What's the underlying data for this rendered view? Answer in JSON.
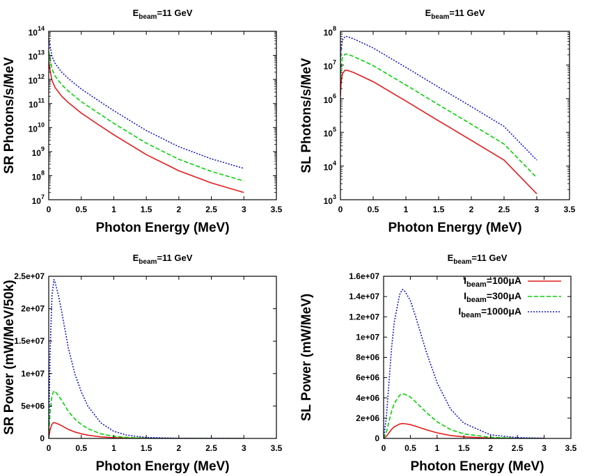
{
  "colors": {
    "red": "#e41a1c",
    "green": "#00d400",
    "blue": "#1414d2"
  },
  "legend": {
    "title_sub": "beam",
    "entries": [
      {
        "prefix": "I",
        "sub": "beam",
        "value": "=100μA",
        "series": 0
      },
      {
        "prefix": "I",
        "sub": "beam",
        "value": "=300μA",
        "series": 1
      },
      {
        "prefix": "I",
        "sub": "beam",
        "value": "=1000μA",
        "series": 2
      }
    ]
  },
  "chart_data": [
    {
      "id": "sr-photons",
      "type": "line",
      "title_main": "E",
      "title_sub": "beam",
      "title_rest": "=11 GeV",
      "xlabel": "Photon Energy (MeV)",
      "ylabel": "SR Photons/s/MeV",
      "xscale": "linear",
      "yscale": "log",
      "xlim": [
        0,
        3.5
      ],
      "ylim": [
        10000000,
        100000000000000
      ],
      "xticks": [
        "0",
        "0.5",
        "1",
        "1.5",
        "2",
        "2.5",
        "3",
        "3.5"
      ],
      "yticks": [
        {
          "base": "10",
          "exp": "7"
        },
        {
          "base": "10",
          "exp": "8"
        },
        {
          "base": "10",
          "exp": "9"
        },
        {
          "base": "10",
          "exp": "10"
        },
        {
          "base": "10",
          "exp": "11"
        },
        {
          "base": "10",
          "exp": "12"
        },
        {
          "base": "10",
          "exp": "13"
        },
        {
          "base": "10",
          "exp": "14"
        }
      ],
      "series": [
        {
          "name": "I_beam=100μA",
          "x": [
            0.0,
            0.05,
            0.1,
            0.2,
            0.3,
            0.5,
            0.75,
            1.0,
            1.5,
            2.0,
            2.5,
            3.0
          ],
          "y": [
            5000000000000.0,
            900000000000.0,
            450000000000.0,
            200000000000.0,
            110000000000.0,
            40000000000.0,
            14000000000.0,
            5000000000.0,
            750000000.0,
            160000000.0,
            50000000.0,
            20000000.0
          ]
        },
        {
          "name": "I_beam=300μA",
          "x": [
            0.0,
            0.05,
            0.1,
            0.2,
            0.3,
            0.5,
            0.75,
            1.0,
            1.5,
            2.0,
            2.5,
            3.0
          ],
          "y": [
            15000000000000.0,
            2700000000000.0,
            1350000000000.0,
            600000000000.0,
            330000000000.0,
            120000000000.0,
            42000000000.0,
            15000000000.0,
            2250000000.0,
            480000000.0,
            150000000.0,
            60000000.0
          ]
        },
        {
          "name": "I_beam=1000μA",
          "x": [
            0.0,
            0.05,
            0.1,
            0.2,
            0.3,
            0.5,
            0.75,
            1.0,
            1.5,
            2.0,
            2.5,
            3.0
          ],
          "y": [
            50000000000000.0,
            9000000000000.0,
            4500000000000.0,
            2000000000000.0,
            1100000000000.0,
            400000000000.0,
            140000000000.0,
            50000000000.0,
            7500000000.0,
            1600000000.0,
            500000000.0,
            200000000.0
          ]
        }
      ]
    },
    {
      "id": "sl-photons",
      "type": "line",
      "title_main": "E",
      "title_sub": "beam",
      "title_rest": "=11 GeV",
      "xlabel": "Photon Energy (MeV)",
      "ylabel": "SL Photons/s/MeV",
      "xscale": "linear",
      "yscale": "log",
      "xlim": [
        0,
        3.5
      ],
      "ylim": [
        1000,
        100000000
      ],
      "xticks": [
        "0",
        "0.5",
        "1",
        "1.5",
        "2",
        "2.5",
        "3",
        "3.5"
      ],
      "yticks": [
        {
          "base": "10",
          "exp": "3"
        },
        {
          "base": "10",
          "exp": "4"
        },
        {
          "base": "10",
          "exp": "5"
        },
        {
          "base": "10",
          "exp": "6"
        },
        {
          "base": "10",
          "exp": "7"
        },
        {
          "base": "10",
          "exp": "8"
        }
      ],
      "series": [
        {
          "name": "I_beam=100μA",
          "x": [
            0.0,
            0.01,
            0.03,
            0.07,
            0.1,
            0.2,
            0.5,
            1.0,
            1.5,
            2.0,
            2.5,
            3.0
          ],
          "y": [
            1200000.0,
            3000000.0,
            5500000.0,
            7000000.0,
            7000000.0,
            6000000.0,
            3200000.0,
            850000.0,
            220000.0,
            58000.0,
            15000.0,
            1500.0
          ]
        },
        {
          "name": "I_beam=300μA",
          "x": [
            0.0,
            0.01,
            0.03,
            0.07,
            0.1,
            0.2,
            0.5,
            1.0,
            1.5,
            2.0,
            2.5,
            3.0
          ],
          "y": [
            3600000.0,
            9000000.0,
            16500000.0,
            21000000.0,
            21000000.0,
            18000000.0,
            9600000.0,
            2550000.0,
            660000.0,
            174000.0,
            45000.0,
            4500.0
          ]
        },
        {
          "name": "I_beam=1000μA",
          "x": [
            0.0,
            0.01,
            0.03,
            0.07,
            0.1,
            0.2,
            0.5,
            1.0,
            1.5,
            2.0,
            2.5,
            3.0
          ],
          "y": [
            12000000.0,
            30000000.0,
            55000000.0,
            70000000.0,
            70000000.0,
            60000000.0,
            32000000.0,
            8500000.0,
            2200000.0,
            580000.0,
            150000.0,
            15000.0
          ]
        }
      ]
    },
    {
      "id": "sr-power",
      "type": "line",
      "title_main": "E",
      "title_sub": "beam",
      "title_rest": "=11 GeV",
      "xlabel": "Photon Energy (MeV)",
      "ylabel": "SR Power (mW/MeV/50k)",
      "xscale": "linear",
      "yscale": "linear",
      "xlim": [
        0,
        3.5
      ],
      "ylim": [
        0,
        25000000
      ],
      "xticks": [
        "0",
        "0.5",
        "1",
        "1.5",
        "2",
        "2.5",
        "3",
        "3.5"
      ],
      "yticks": [
        "0",
        "5e+06",
        "1e+07",
        "1.5e+07",
        "2e+07",
        "2.5e+07"
      ],
      "series": [
        {
          "name": "I_beam=100μA",
          "x": [
            0.0,
            0.02,
            0.05,
            0.08,
            0.1,
            0.15,
            0.2,
            0.3,
            0.4,
            0.5,
            0.6,
            0.8,
            1.0,
            1.2,
            1.5,
            2.0,
            2.5,
            3.0
          ],
          "y": [
            0,
            1300000.0,
            2200000.0,
            2450000.0,
            2400000.0,
            2200000.0,
            1950000.0,
            1400000.0,
            1000000.0,
            720000.0,
            500000.0,
            240000.0,
            110000.0,
            50000.0,
            15000.0,
            2000.0,
            300,
            0
          ]
        },
        {
          "name": "I_beam=300μA",
          "x": [
            0.0,
            0.02,
            0.05,
            0.08,
            0.1,
            0.15,
            0.2,
            0.3,
            0.4,
            0.5,
            0.6,
            0.8,
            1.0,
            1.2,
            1.5,
            2.0,
            2.5,
            3.0
          ],
          "y": [
            0,
            3900000.0,
            6600000.0,
            7350000.0,
            7200000.0,
            6600000.0,
            5850000.0,
            4200000.0,
            3000000.0,
            2160000.0,
            1500000.0,
            720000.0,
            330000.0,
            150000.0,
            45000.0,
            6000.0,
            900,
            0
          ]
        },
        {
          "name": "I_beam=1000μA",
          "x": [
            0.0,
            0.02,
            0.05,
            0.08,
            0.1,
            0.15,
            0.2,
            0.3,
            0.4,
            0.5,
            0.6,
            0.8,
            1.0,
            1.2,
            1.5,
            2.0,
            2.5,
            3.0
          ],
          "y": [
            0,
            13000000.0,
            22000000.0,
            24500000.0,
            24000000.0,
            22000000.0,
            19500000.0,
            14000000.0,
            10000000.0,
            7200000.0,
            5000000.0,
            2400000.0,
            1100000.0,
            500000.0,
            150000.0,
            20000.0,
            3000.0,
            0
          ]
        }
      ]
    },
    {
      "id": "sl-power",
      "type": "line",
      "title_main": "E",
      "title_sub": "beam",
      "title_rest": "=11 GeV",
      "xlabel": "Photon Energy (MeV)",
      "ylabel": "SL Power (mW/MeV)",
      "xscale": "linear",
      "yscale": "linear",
      "xlim": [
        0,
        3.5
      ],
      "ylim": [
        0,
        16000000
      ],
      "xticks": [
        "0",
        "0.5",
        "1",
        "1.5",
        "2",
        "2.5",
        "3",
        "3.5"
      ],
      "yticks": [
        "0",
        "2e+06",
        "4e+06",
        "6e+06",
        "8e+06",
        "1e+07",
        "1.2e+07",
        "1.4e+07",
        "1.6e+07"
      ],
      "legend_position": "top-right",
      "series": [
        {
          "name": "I_beam=100μA",
          "x": [
            0.0,
            0.05,
            0.1,
            0.15,
            0.2,
            0.3,
            0.35,
            0.4,
            0.5,
            0.6,
            0.8,
            1.0,
            1.25,
            1.5,
            2.0,
            2.5,
            3.0
          ],
          "y": [
            0,
            200000.0,
            550000.0,
            900000.0,
            1150000.0,
            1420000.0,
            1470000.0,
            1450000.0,
            1360000.0,
            1200000.0,
            850000.0,
            550000.0,
            290000.0,
            150000.0,
            35000.0,
            8000.0,
            2000.0
          ]
        },
        {
          "name": "I_beam=300μA",
          "x": [
            0.0,
            0.05,
            0.1,
            0.15,
            0.2,
            0.3,
            0.35,
            0.4,
            0.5,
            0.6,
            0.8,
            1.0,
            1.25,
            1.5,
            2.0,
            2.5,
            3.0
          ],
          "y": [
            0,
            600000.0,
            1650000.0,
            2700000.0,
            3450000.0,
            4260000.0,
            4410000.0,
            4350000.0,
            4080000.0,
            3600000.0,
            2550000.0,
            1650000.0,
            870000.0,
            450000.0,
            105000.0,
            24000.0,
            6000.0
          ]
        },
        {
          "name": "I_beam=1000μA",
          "x": [
            0.0,
            0.05,
            0.1,
            0.15,
            0.2,
            0.3,
            0.35,
            0.4,
            0.5,
            0.6,
            0.8,
            1.0,
            1.25,
            1.5,
            2.0,
            2.5,
            3.0
          ],
          "y": [
            0,
            2000000.0,
            5500000.0,
            9000000.0,
            11500000.0,
            14200000.0,
            14700000.0,
            14500000.0,
            13600000.0,
            12000000.0,
            8500000.0,
            5500000.0,
            2900000.0,
            1500000.0,
            350000.0,
            80000.0,
            20000.0
          ]
        }
      ]
    }
  ]
}
